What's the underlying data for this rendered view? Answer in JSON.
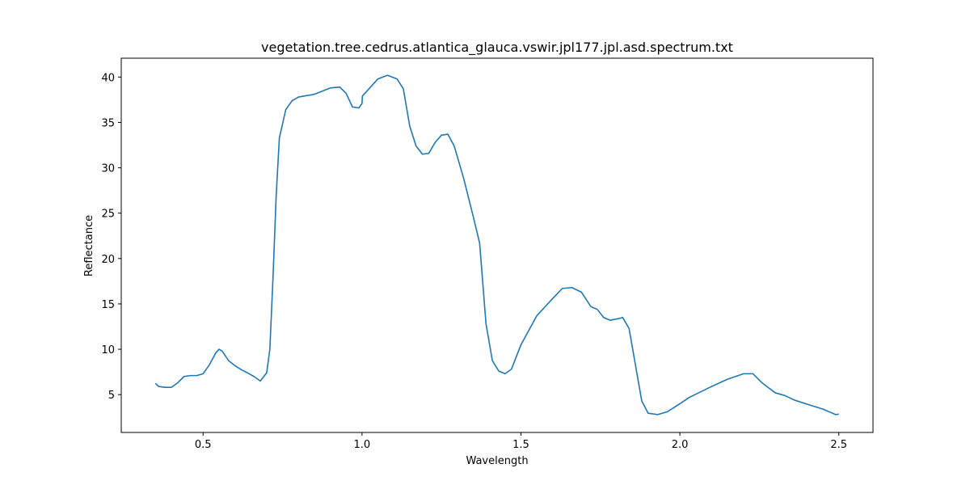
{
  "chart_data": {
    "type": "line",
    "title": "vegetation.tree.cedrus.atlantica_glauca.vswir.jpl177.jpl.asd.spectrum.txt",
    "x_label": "Wavelength",
    "y_label": "Reflectance",
    "x": [
      0.35,
      0.36,
      0.38,
      0.4,
      0.42,
      0.44,
      0.46,
      0.48,
      0.5,
      0.52,
      0.54,
      0.55,
      0.56,
      0.58,
      0.6,
      0.62,
      0.64,
      0.66,
      0.68,
      0.7,
      0.71,
      0.72,
      0.73,
      0.74,
      0.76,
      0.78,
      0.8,
      0.85,
      0.9,
      0.93,
      0.95,
      0.97,
      0.99,
      1.0,
      1.001,
      1.05,
      1.08,
      1.11,
      1.13,
      1.15,
      1.17,
      1.19,
      1.21,
      1.23,
      1.25,
      1.27,
      1.29,
      1.32,
      1.35,
      1.37,
      1.39,
      1.41,
      1.43,
      1.45,
      1.47,
      1.5,
      1.55,
      1.6,
      1.63,
      1.66,
      1.69,
      1.72,
      1.74,
      1.76,
      1.78,
      1.81,
      1.82,
      1.84,
      1.86,
      1.88,
      1.9,
      1.93,
      1.96,
      2.0,
      2.03,
      2.1,
      2.15,
      2.2,
      2.23,
      2.26,
      2.3,
      2.33,
      2.36,
      2.4,
      2.45,
      2.48,
      2.49,
      2.5
    ],
    "series": [
      {
        "color": "#1f77b4",
        "values": [
          6.25,
          5.9,
          5.8,
          5.8,
          6.3,
          7.0,
          7.1,
          7.1,
          7.3,
          8.3,
          9.6,
          10.0,
          9.8,
          8.75,
          8.2,
          7.75,
          7.4,
          7.0,
          6.5,
          7.4,
          10.0,
          18.0,
          27.0,
          33.3,
          36.4,
          37.4,
          37.8,
          38.1,
          38.8,
          38.9,
          38.2,
          36.7,
          36.6,
          37.1,
          37.9,
          39.8,
          40.2,
          39.8,
          38.7,
          34.6,
          32.4,
          31.5,
          31.6,
          32.8,
          33.6,
          33.7,
          32.4,
          28.8,
          24.6,
          21.7,
          12.8,
          8.75,
          7.6,
          7.3,
          7.8,
          10.5,
          13.7,
          15.6,
          16.7,
          16.8,
          16.3,
          14.7,
          14.4,
          13.5,
          13.2,
          13.4,
          13.5,
          12.3,
          8.3,
          4.3,
          2.95,
          2.8,
          3.1,
          4.0,
          4.7,
          5.9,
          6.7,
          7.3,
          7.3,
          6.25,
          5.2,
          4.9,
          4.4,
          3.95,
          3.4,
          2.95,
          2.8,
          2.85
        ]
      }
    ],
    "xlim": [
      0.2425,
      2.6075
    ],
    "xticks": [
      0.5,
      {
        "value": 1.0,
        "label": "1.0"
      },
      1.5,
      {
        "value": 2.0,
        "label": "2.0"
      },
      2.5
    ],
    "ylim": [
      0.83,
      42.08
    ],
    "yticks": [
      5,
      10,
      15,
      20,
      25,
      30,
      35,
      40
    ],
    "grid": false
  }
}
